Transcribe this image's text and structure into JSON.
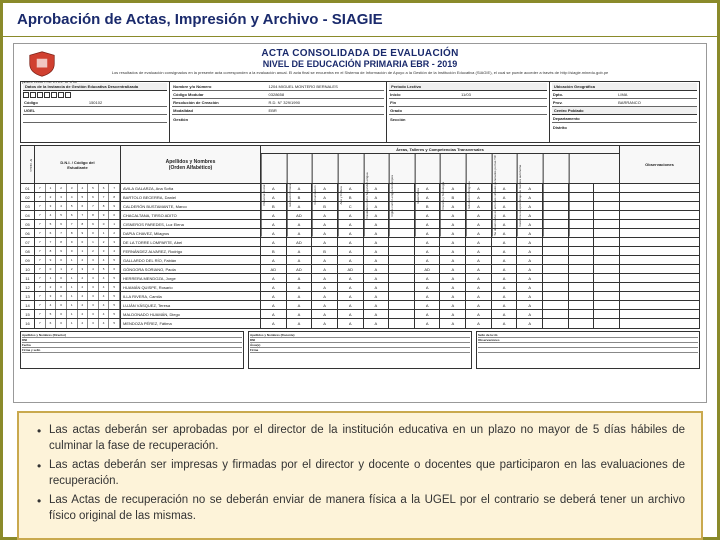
{
  "title": "Aprobación de Actas, Impresión y Archivo - SIAGIE",
  "doc": {
    "title1": "ACTA CONSOLIDADA DE EVALUACIÓN",
    "title2": "NIVEL DE EDUCACIÓN PRIMARIA EBR - 2019",
    "ministry": "MINISTERIO DE EDUCACIÓN",
    "fineprint": "Los resultados de evaluación consignados en la presente acta corresponden a la evaluación anual. El acta final se encuentra en el Sistema de Información de Apoyo a la Gestión de la Institución Educativa (SIAGIE), el cual se puede acceder a través de http://siagie.minedu.gob.pe",
    "form": {
      "c1": {
        "head": "Datos de la Instancia de Gestión Educativa Descentralizada",
        "r1": "Código",
        "v1": "150102",
        "r2": "UGEL",
        "v2": "UGEL 07 San Borja",
        "r3": "",
        "r4": ""
      },
      "c2": {
        "r1": "Nombre y/o Número",
        "v1": "1204 MIGUEL MONTERO BERNALES",
        "r2": "Código Modular",
        "v2": "0328658",
        "r3": "Resolución de Creación",
        "v3": "R.D. N° 329/1990",
        "r4": "Modalidad",
        "v4": "EBR",
        "r5": "Gestión"
      },
      "c3": {
        "head": "Periodo Lectivo",
        "r1": "Inicio",
        "v1": "11/03",
        "r2": "Fin",
        "r3": "Grado",
        "r4": "Sección"
      },
      "c4": {
        "head": "Ubicación Geográfica",
        "r1": "Dpto.",
        "v1": "LIMA",
        "r2": "Prov.",
        "v2": "BARRANCO",
        "head2": "Centro Poblado",
        "r3": "Departamento",
        "r4": "Distrito"
      }
    },
    "table": {
      "h_num": "N° Orden",
      "h_dni1": "D.N.I. / Código del",
      "h_dni2": "Estudiante",
      "h_name1": "Apellidos y Nombres",
      "h_name2": "(Orden Alfabético)",
      "h_areas": "Áreas, Talleres y Competencias Transversales",
      "h_obs": "Observaciones",
      "areas": [
        "Personal Social",
        "Educación Física",
        "Comunicación",
        "Arte y Cultura",
        "Castellano como Segunda Lengua",
        "Inglés como Lengua Extranjera",
        "Matemática",
        "Ciencia y Tecnología",
        "Educación Religiosa",
        "Se desenvuelve en entornos virtuales generados por las TIC",
        "Gestiona su aprendizaje de manera autónoma",
        "",
        "",
        ""
      ],
      "rows": [
        {
          "n": "01",
          "dni": "71234567",
          "name": "AVILA GALARZA, Ana Sofía",
          "g": [
            "A",
            "A",
            "A",
            "A",
            "A",
            "",
            "A",
            "A",
            "A",
            "A",
            "A",
            "",
            "",
            ""
          ],
          "o": ""
        },
        {
          "n": "02",
          "dni": "72345678",
          "name": "BARTOLO BECERRA, Daniel",
          "g": [
            "A",
            "B",
            "A",
            "B",
            "A",
            "",
            "A",
            "B",
            "A",
            "A",
            "A",
            "",
            "",
            ""
          ],
          "o": ""
        },
        {
          "n": "03",
          "dni": "73456789",
          "name": "CALDERÓN BUSTAMANTE, Marco",
          "g": [
            "B",
            "A",
            "B",
            "C",
            "A",
            "",
            "B",
            "A",
            "A",
            "A",
            "A",
            "",
            "",
            ""
          ],
          "o": ""
        },
        {
          "n": "04",
          "dni": "74567890",
          "name": "CHACALTANA, TIRSO ADITO",
          "g": [
            "A",
            "AD",
            "A",
            "A",
            "A",
            "",
            "A",
            "A",
            "A",
            "A",
            "A",
            "",
            "",
            ""
          ],
          "o": ""
        },
        {
          "n": "05",
          "dni": "75678901",
          "name": "CISNEROS PAREDES, Luz Elena",
          "g": [
            "A",
            "A",
            "A",
            "A",
            "A",
            "",
            "A",
            "A",
            "A",
            "A",
            "A",
            "",
            "",
            ""
          ],
          "o": ""
        },
        {
          "n": "06",
          "dni": "76789012",
          "name": "DAPIA CHAVEZ, Milagros",
          "g": [
            "A",
            "A",
            "A",
            "A",
            "A",
            "",
            "A",
            "A",
            "A",
            "A",
            "A",
            "",
            "",
            ""
          ],
          "o": ""
        },
        {
          "n": "07",
          "dni": "77890123",
          "name": "DE LA TORRE LOMPARTE, Abel",
          "g": [
            "A",
            "AD",
            "A",
            "A",
            "A",
            "",
            "A",
            "A",
            "A",
            "A",
            "A",
            "",
            "",
            ""
          ],
          "o": ""
        },
        {
          "n": "08",
          "dni": "78901234",
          "name": "FERNÁNDEZ ALVAREZ, Rodrigo",
          "g": [
            "B",
            "A",
            "B",
            "A",
            "A",
            "",
            "A",
            "A",
            "A",
            "A",
            "A",
            "",
            "",
            ""
          ],
          "o": ""
        },
        {
          "n": "09",
          "dni": "79012345",
          "name": "GALLARDO DEL RÍO, Fabián",
          "g": [
            "A",
            "A",
            "A",
            "A",
            "A",
            "",
            "A",
            "A",
            "A",
            "A",
            "A",
            "",
            "",
            ""
          ],
          "o": ""
        },
        {
          "n": "10",
          "dni": "70123456",
          "name": "GÓNGORA SORIANO, Paola",
          "g": [
            "AD",
            "AD",
            "A",
            "AD",
            "A",
            "",
            "AD",
            "A",
            "A",
            "A",
            "A",
            "",
            "",
            ""
          ],
          "o": ""
        },
        {
          "n": "11",
          "dni": "71012345",
          "name": "HERRERA MENDOZA, Jorge",
          "g": [
            "A",
            "A",
            "A",
            "A",
            "A",
            "",
            "A",
            "A",
            "A",
            "A",
            "A",
            "",
            "",
            ""
          ],
          "o": ""
        },
        {
          "n": "12",
          "dni": "72012345",
          "name": "HUAMÁN QUISPE, Rosario",
          "g": [
            "A",
            "A",
            "A",
            "A",
            "A",
            "",
            "A",
            "A",
            "A",
            "A",
            "A",
            "",
            "",
            ""
          ],
          "o": ""
        },
        {
          "n": "13",
          "dni": "73012345",
          "name": "ILLA RIVERA, Camila",
          "g": [
            "A",
            "A",
            "A",
            "A",
            "A",
            "",
            "A",
            "A",
            "A",
            "A",
            "A",
            "",
            "",
            ""
          ],
          "o": ""
        },
        {
          "n": "14",
          "dni": "74012345",
          "name": "LUJÁN VÁSQUEZ, Teresa",
          "g": [
            "A",
            "A",
            "A",
            "A",
            "A",
            "",
            "A",
            "A",
            "A",
            "A",
            "A",
            "",
            "",
            ""
          ],
          "o": ""
        },
        {
          "n": "15",
          "dni": "75012345",
          "name": "MALDONADO HUAMÁN, Diego",
          "g": [
            "A",
            "A",
            "A",
            "A",
            "A",
            "",
            "A",
            "A",
            "A",
            "A",
            "A",
            "",
            "",
            ""
          ],
          "o": ""
        },
        {
          "n": "16",
          "dni": "76012345",
          "name": "MENDOZA PÉREZ, Fátima",
          "g": [
            "A",
            "A",
            "A",
            "A",
            "A",
            "",
            "A",
            "A",
            "A",
            "A",
            "A",
            "",
            "",
            ""
          ],
          "o": ""
        }
      ]
    },
    "footer": {
      "b1": [
        "Apellidos y Nombres (Director)",
        "DNI",
        "Fecha",
        "Firma y sello"
      ],
      "b2": [
        "Apellidos y Nombres (Docente)",
        "DNI",
        "Área(s)",
        "Firma"
      ],
      "b3": [
        "Sello de la I.E.",
        "Observaciones",
        "",
        ""
      ]
    }
  },
  "notes": [
    "Las actas deberán ser aprobadas por el director de la institución educativa en un plazo no mayor de 5 días hábiles de culminar la fase de recuperación.",
    "Las actas deberán ser impresas y firmadas por el director y docente o docentes que participaron en las evaluaciones de recuperación.",
    "Las Actas de recuperación no se deberán enviar de manera física a la UGEL por el contrario se deberá tener un archivo físico original de las mismas."
  ],
  "colors": {
    "border": "#8a8a2a",
    "title": "#1a2a6c",
    "noteBg": "#fdf3d9",
    "noteBorder": "#c9a94e"
  }
}
